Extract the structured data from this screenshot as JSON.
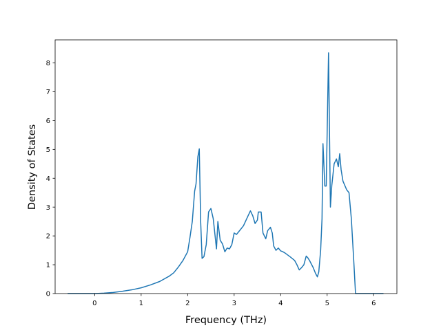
{
  "chart_data": {
    "type": "line",
    "title": "",
    "xlabel": "Frequency (THz)",
    "ylabel": "Density of States",
    "xlim": [
      -0.85,
      6.5
    ],
    "ylim": [
      0,
      8.8
    ],
    "xticks": [
      0,
      1,
      2,
      3,
      4,
      5,
      6
    ],
    "yticks": [
      0,
      1,
      2,
      3,
      4,
      5,
      6,
      7,
      8
    ],
    "grid": false,
    "series": [
      {
        "name": "",
        "color": "#1f77b4",
        "x": [
          -0.57,
          0.0,
          0.2,
          0.4,
          0.6,
          0.8,
          1.0,
          1.2,
          1.4,
          1.6,
          1.7,
          1.8,
          1.9,
          2.0,
          2.05,
          2.1,
          2.15,
          2.18,
          2.22,
          2.25,
          2.28,
          2.31,
          2.35,
          2.4,
          2.45,
          2.5,
          2.55,
          2.62,
          2.65,
          2.7,
          2.75,
          2.8,
          2.85,
          2.9,
          2.95,
          3.0,
          3.05,
          3.1,
          3.2,
          3.3,
          3.35,
          3.4,
          3.45,
          3.5,
          3.52,
          3.58,
          3.62,
          3.68,
          3.72,
          3.78,
          3.82,
          3.85,
          3.9,
          3.95,
          4.0,
          4.05,
          4.1,
          4.2,
          4.3,
          4.35,
          4.4,
          4.45,
          4.5,
          4.55,
          4.58,
          4.62,
          4.7,
          4.75,
          4.79,
          4.82,
          4.86,
          4.89,
          4.91,
          4.95,
          4.98,
          5.03,
          5.07,
          5.1,
          5.15,
          5.2,
          5.24,
          5.27,
          5.3,
          5.34,
          5.38,
          5.42,
          5.47,
          5.52,
          5.57,
          5.61,
          5.62,
          5.7,
          6.2
        ],
        "y": [
          0,
          0,
          0.015,
          0.04,
          0.08,
          0.13,
          0.2,
          0.3,
          0.42,
          0.6,
          0.72,
          0.92,
          1.15,
          1.45,
          1.95,
          2.5,
          3.55,
          3.8,
          4.75,
          5.02,
          2.5,
          1.22,
          1.28,
          1.7,
          2.83,
          2.95,
          2.6,
          1.55,
          2.5,
          1.85,
          1.72,
          1.45,
          1.58,
          1.55,
          1.7,
          2.1,
          2.05,
          2.15,
          2.35,
          2.7,
          2.87,
          2.7,
          2.43,
          2.55,
          2.83,
          2.83,
          2.1,
          1.9,
          2.18,
          2.3,
          2.1,
          1.65,
          1.5,
          1.58,
          1.48,
          1.45,
          1.4,
          1.28,
          1.15,
          1.0,
          0.82,
          0.9,
          1.0,
          1.3,
          1.25,
          1.15,
          0.9,
          0.7,
          0.58,
          0.75,
          1.5,
          2.6,
          5.2,
          3.73,
          3.73,
          8.35,
          3.0,
          3.75,
          4.5,
          4.67,
          4.4,
          4.85,
          4.3,
          3.9,
          3.75,
          3.6,
          3.5,
          2.6,
          1.2,
          0.0,
          0,
          0,
          0
        ]
      }
    ]
  }
}
